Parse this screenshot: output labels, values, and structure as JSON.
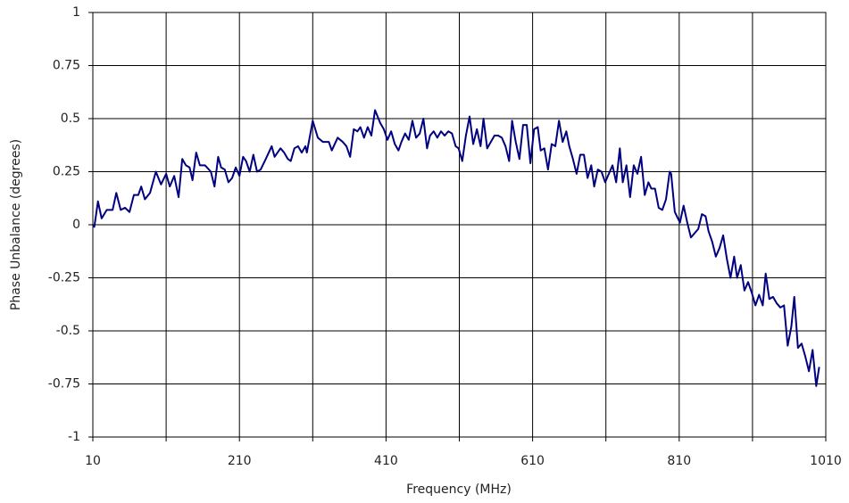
{
  "chart_data": {
    "type": "line",
    "x_label": "Frequency (MHz)",
    "y_label": "Phase Unbalance (degrees)",
    "xlim": [
      10,
      1010
    ],
    "xticks": [
      10,
      210,
      410,
      610,
      810,
      1010
    ],
    "x_minor_grid": [
      110,
      310,
      510,
      710,
      910
    ],
    "ylim": [
      -1,
      1
    ],
    "yticks": [
      -1,
      -0.75,
      -0.5,
      -0.25,
      0,
      0.25,
      0.5,
      0.75,
      1
    ],
    "grid": true,
    "series": [
      {
        "color": "#000080",
        "x": [
          10,
          12,
          17,
          22,
          29,
          37,
          42,
          48,
          54,
          60,
          66,
          72,
          76,
          81,
          88,
          96,
          103,
          110,
          115,
          121,
          127,
          132,
          137,
          142,
          146,
          151,
          156,
          163,
          171,
          176,
          181,
          185,
          190,
          195,
          200,
          205,
          210,
          215,
          219,
          224,
          229,
          234,
          239,
          246,
          254,
          258,
          266,
          271,
          276,
          280,
          285,
          290,
          295,
          300,
          302,
          310,
          317,
          324,
          332,
          336,
          344,
          351,
          356,
          361,
          366,
          371,
          375,
          380,
          385,
          390,
          395,
          402,
          407,
          412,
          417,
          422,
          427,
          431,
          436,
          441,
          446,
          451,
          456,
          461,
          466,
          470,
          475,
          480,
          485,
          490,
          495,
          500,
          505,
          509,
          514,
          519,
          524,
          529,
          534,
          539,
          543,
          548,
          553,
          558,
          563,
          568,
          573,
          578,
          582,
          587,
          592,
          597,
          602,
          607,
          612,
          617,
          621,
          626,
          631,
          636,
          641,
          646,
          651,
          656,
          660,
          665,
          670,
          675,
          680,
          685,
          690,
          694,
          699,
          704,
          709,
          714,
          719,
          724,
          729,
          733,
          738,
          743,
          748,
          753,
          758,
          763,
          768,
          772,
          777,
          782,
          787,
          792,
          797,
          799,
          804,
          811,
          816,
          821,
          826,
          831,
          836,
          841,
          846,
          850,
          855,
          860,
          865,
          870,
          875,
          880,
          885,
          889,
          894,
          899,
          904,
          909,
          914,
          919,
          924,
          928,
          933,
          938,
          943,
          948,
          953,
          958,
          963,
          967,
          972,
          977,
          982,
          987,
          992,
          997,
          1001
        ],
        "values": [
          0,
          -0.01,
          0.11,
          0.03,
          0.07,
          0.07,
          0.15,
          0.07,
          0.08,
          0.06,
          0.14,
          0.14,
          0.18,
          0.12,
          0.15,
          0.25,
          0.19,
          0.24,
          0.18,
          0.23,
          0.13,
          0.31,
          0.28,
          0.27,
          0.21,
          0.34,
          0.28,
          0.28,
          0.25,
          0.18,
          0.32,
          0.27,
          0.26,
          0.2,
          0.22,
          0.27,
          0.23,
          0.32,
          0.3,
          0.25,
          0.33,
          0.25,
          0.26,
          0.31,
          0.37,
          0.32,
          0.36,
          0.34,
          0.31,
          0.3,
          0.36,
          0.37,
          0.34,
          0.37,
          0.34,
          0.49,
          0.41,
          0.39,
          0.39,
          0.35,
          0.41,
          0.39,
          0.37,
          0.32,
          0.45,
          0.44,
          0.46,
          0.41,
          0.46,
          0.42,
          0.54,
          0.48,
          0.45,
          0.4,
          0.44,
          0.38,
          0.35,
          0.39,
          0.43,
          0.4,
          0.49,
          0.41,
          0.43,
          0.5,
          0.36,
          0.42,
          0.44,
          0.41,
          0.44,
          0.42,
          0.44,
          0.43,
          0.37,
          0.36,
          0.3,
          0.42,
          0.51,
          0.38,
          0.45,
          0.37,
          0.5,
          0.36,
          0.39,
          0.42,
          0.42,
          0.41,
          0.37,
          0.3,
          0.49,
          0.39,
          0.31,
          0.47,
          0.47,
          0.29,
          0.45,
          0.46,
          0.35,
          0.36,
          0.26,
          0.38,
          0.37,
          0.49,
          0.39,
          0.44,
          0.37,
          0.31,
          0.24,
          0.33,
          0.33,
          0.22,
          0.28,
          0.18,
          0.26,
          0.25,
          0.2,
          0.24,
          0.28,
          0.2,
          0.36,
          0.2,
          0.28,
          0.13,
          0.28,
          0.24,
          0.32,
          0.14,
          0.2,
          0.17,
          0.17,
          0.08,
          0.07,
          0.12,
          0.25,
          0.24,
          0.06,
          0.01,
          0.09,
          0.01,
          -0.06,
          -0.04,
          -0.02,
          0.05,
          0.04,
          -0.03,
          -0.08,
          -0.15,
          -0.11,
          -0.05,
          -0.16,
          -0.25,
          -0.15,
          -0.25,
          -0.19,
          -0.31,
          -0.27,
          -0.32,
          -0.38,
          -0.33,
          -0.38,
          -0.23,
          -0.35,
          -0.34,
          -0.37,
          -0.39,
          -0.38,
          -0.57,
          -0.48,
          -0.34,
          -0.58,
          -0.56,
          -0.62,
          -0.69,
          -0.59,
          -0.76,
          -0.67
        ]
      }
    ]
  }
}
